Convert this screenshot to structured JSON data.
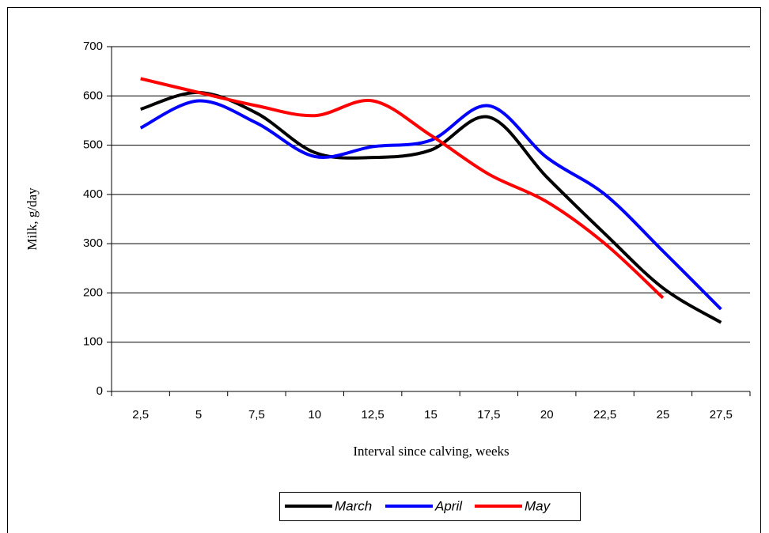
{
  "chart_data": {
    "type": "line",
    "x_label": "Interval since calving, weeks",
    "y_label": "Milk, g/day",
    "categories": [
      "2,5",
      "5",
      "7,5",
      "10",
      "12,5",
      "15",
      "17,5",
      "20",
      "22,5",
      "25",
      "27,5"
    ],
    "series": [
      {
        "name": "March",
        "color": "#000000",
        "values": [
          573,
          607,
          565,
          485,
          475,
          490,
          557,
          435,
          320,
          210,
          140
        ]
      },
      {
        "name": "April",
        "color": "#0000ff",
        "values": [
          535,
          590,
          545,
          477,
          497,
          510,
          580,
          475,
          400,
          285,
          167
        ]
      },
      {
        "name": "May",
        "color": "#ff0000",
        "values": [
          635,
          607,
          580,
          560,
          590,
          520,
          441,
          385,
          300,
          190,
          null
        ]
      }
    ],
    "ylim": [
      0,
      700
    ],
    "yticks": [
      0,
      100,
      200,
      300,
      400,
      500,
      600,
      700
    ],
    "grid": true,
    "legend": "bottom",
    "smooth": true
  }
}
